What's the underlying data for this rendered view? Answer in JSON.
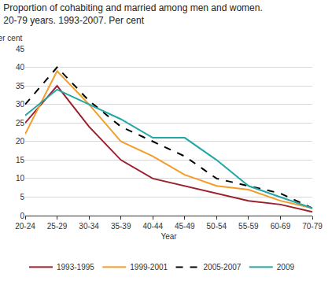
{
  "chart_data": {
    "type": "line",
    "title": "Proportion of cohabiting and married among men and women. 20-79 years. 1993-2007. Per cent",
    "y_label": "Per cent",
    "x_label": "Year",
    "categories": [
      "20-24",
      "25-29",
      "30-34",
      "35-39",
      "40-44",
      "45-49",
      "50-54",
      "55-59",
      "60-69",
      "70-79"
    ],
    "series": [
      {
        "name": "1993-1995",
        "color": "#9c1f2e",
        "line_style": "solid",
        "values": [
          25,
          35,
          24,
          15,
          10,
          8,
          6,
          4,
          3,
          1
        ]
      },
      {
        "name": "1999-2001",
        "color": "#f39c2a",
        "line_style": "solid",
        "values": [
          22,
          39,
          30,
          20,
          16,
          11,
          8,
          7,
          4,
          2
        ]
      },
      {
        "name": "2005-2007",
        "color": "#000000",
        "line_style": "dash",
        "values": [
          30,
          40,
          31,
          24,
          20,
          16,
          10,
          8,
          6,
          2
        ]
      },
      {
        "name": "2009",
        "color": "#22a6a6",
        "line_style": "solid",
        "values": [
          27,
          34,
          30,
          26,
          21,
          21,
          15,
          8,
          5,
          2
        ]
      }
    ],
    "ylim": [
      0,
      45
    ],
    "yticks": [
      0,
      5,
      10,
      15,
      20,
      25,
      30,
      35,
      40,
      45
    ],
    "grid": true,
    "legend": "bottom"
  }
}
